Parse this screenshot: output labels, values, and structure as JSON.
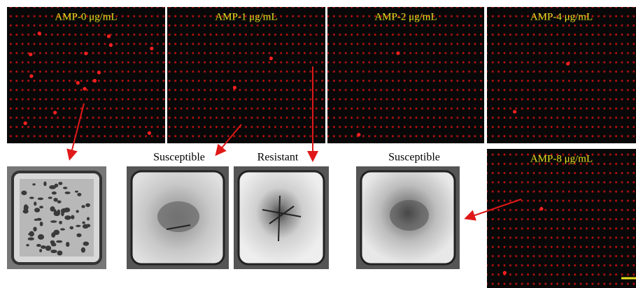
{
  "panels": [
    {
      "label": "AMP-0 μg/mL"
    },
    {
      "label": "AMP-1 μg/mL"
    },
    {
      "label": "AMP-2 μg/mL"
    },
    {
      "label": "AMP-4 μg/mL"
    },
    {
      "label": "AMP-8 μg/mL"
    }
  ],
  "micrographs": [
    {
      "label": "Susceptible"
    },
    {
      "label": "Resistant"
    },
    {
      "label": "Susceptible"
    }
  ]
}
